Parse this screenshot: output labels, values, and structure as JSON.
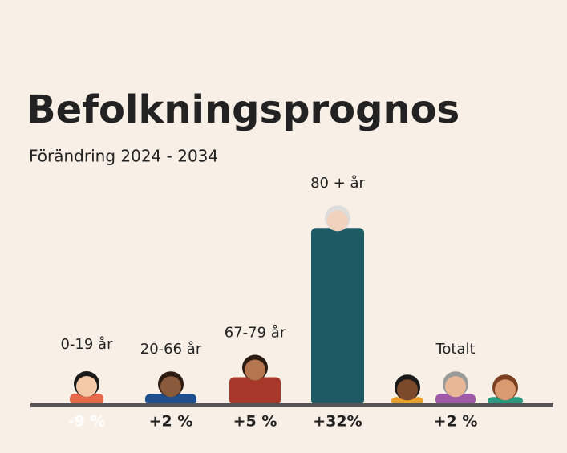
{
  "chart_data": {
    "type": "bar",
    "title": "Befolkningsprognos",
    "subtitle": "Förändring 2024 - 2034",
    "categories": [
      "0-19 år",
      "20-66 år",
      "67-79 år",
      "80 + år",
      "Totalt"
    ],
    "values": [
      -9,
      2,
      5,
      32,
      2
    ],
    "value_labels": [
      "-9 %",
      "+2 %",
      "+5 %",
      "+32%",
      "+2 %"
    ],
    "colors": [
      "#e8684a",
      "#1f4e8c",
      "#a8382a",
      "#1d5a63",
      "#a05aa8"
    ]
  }
}
